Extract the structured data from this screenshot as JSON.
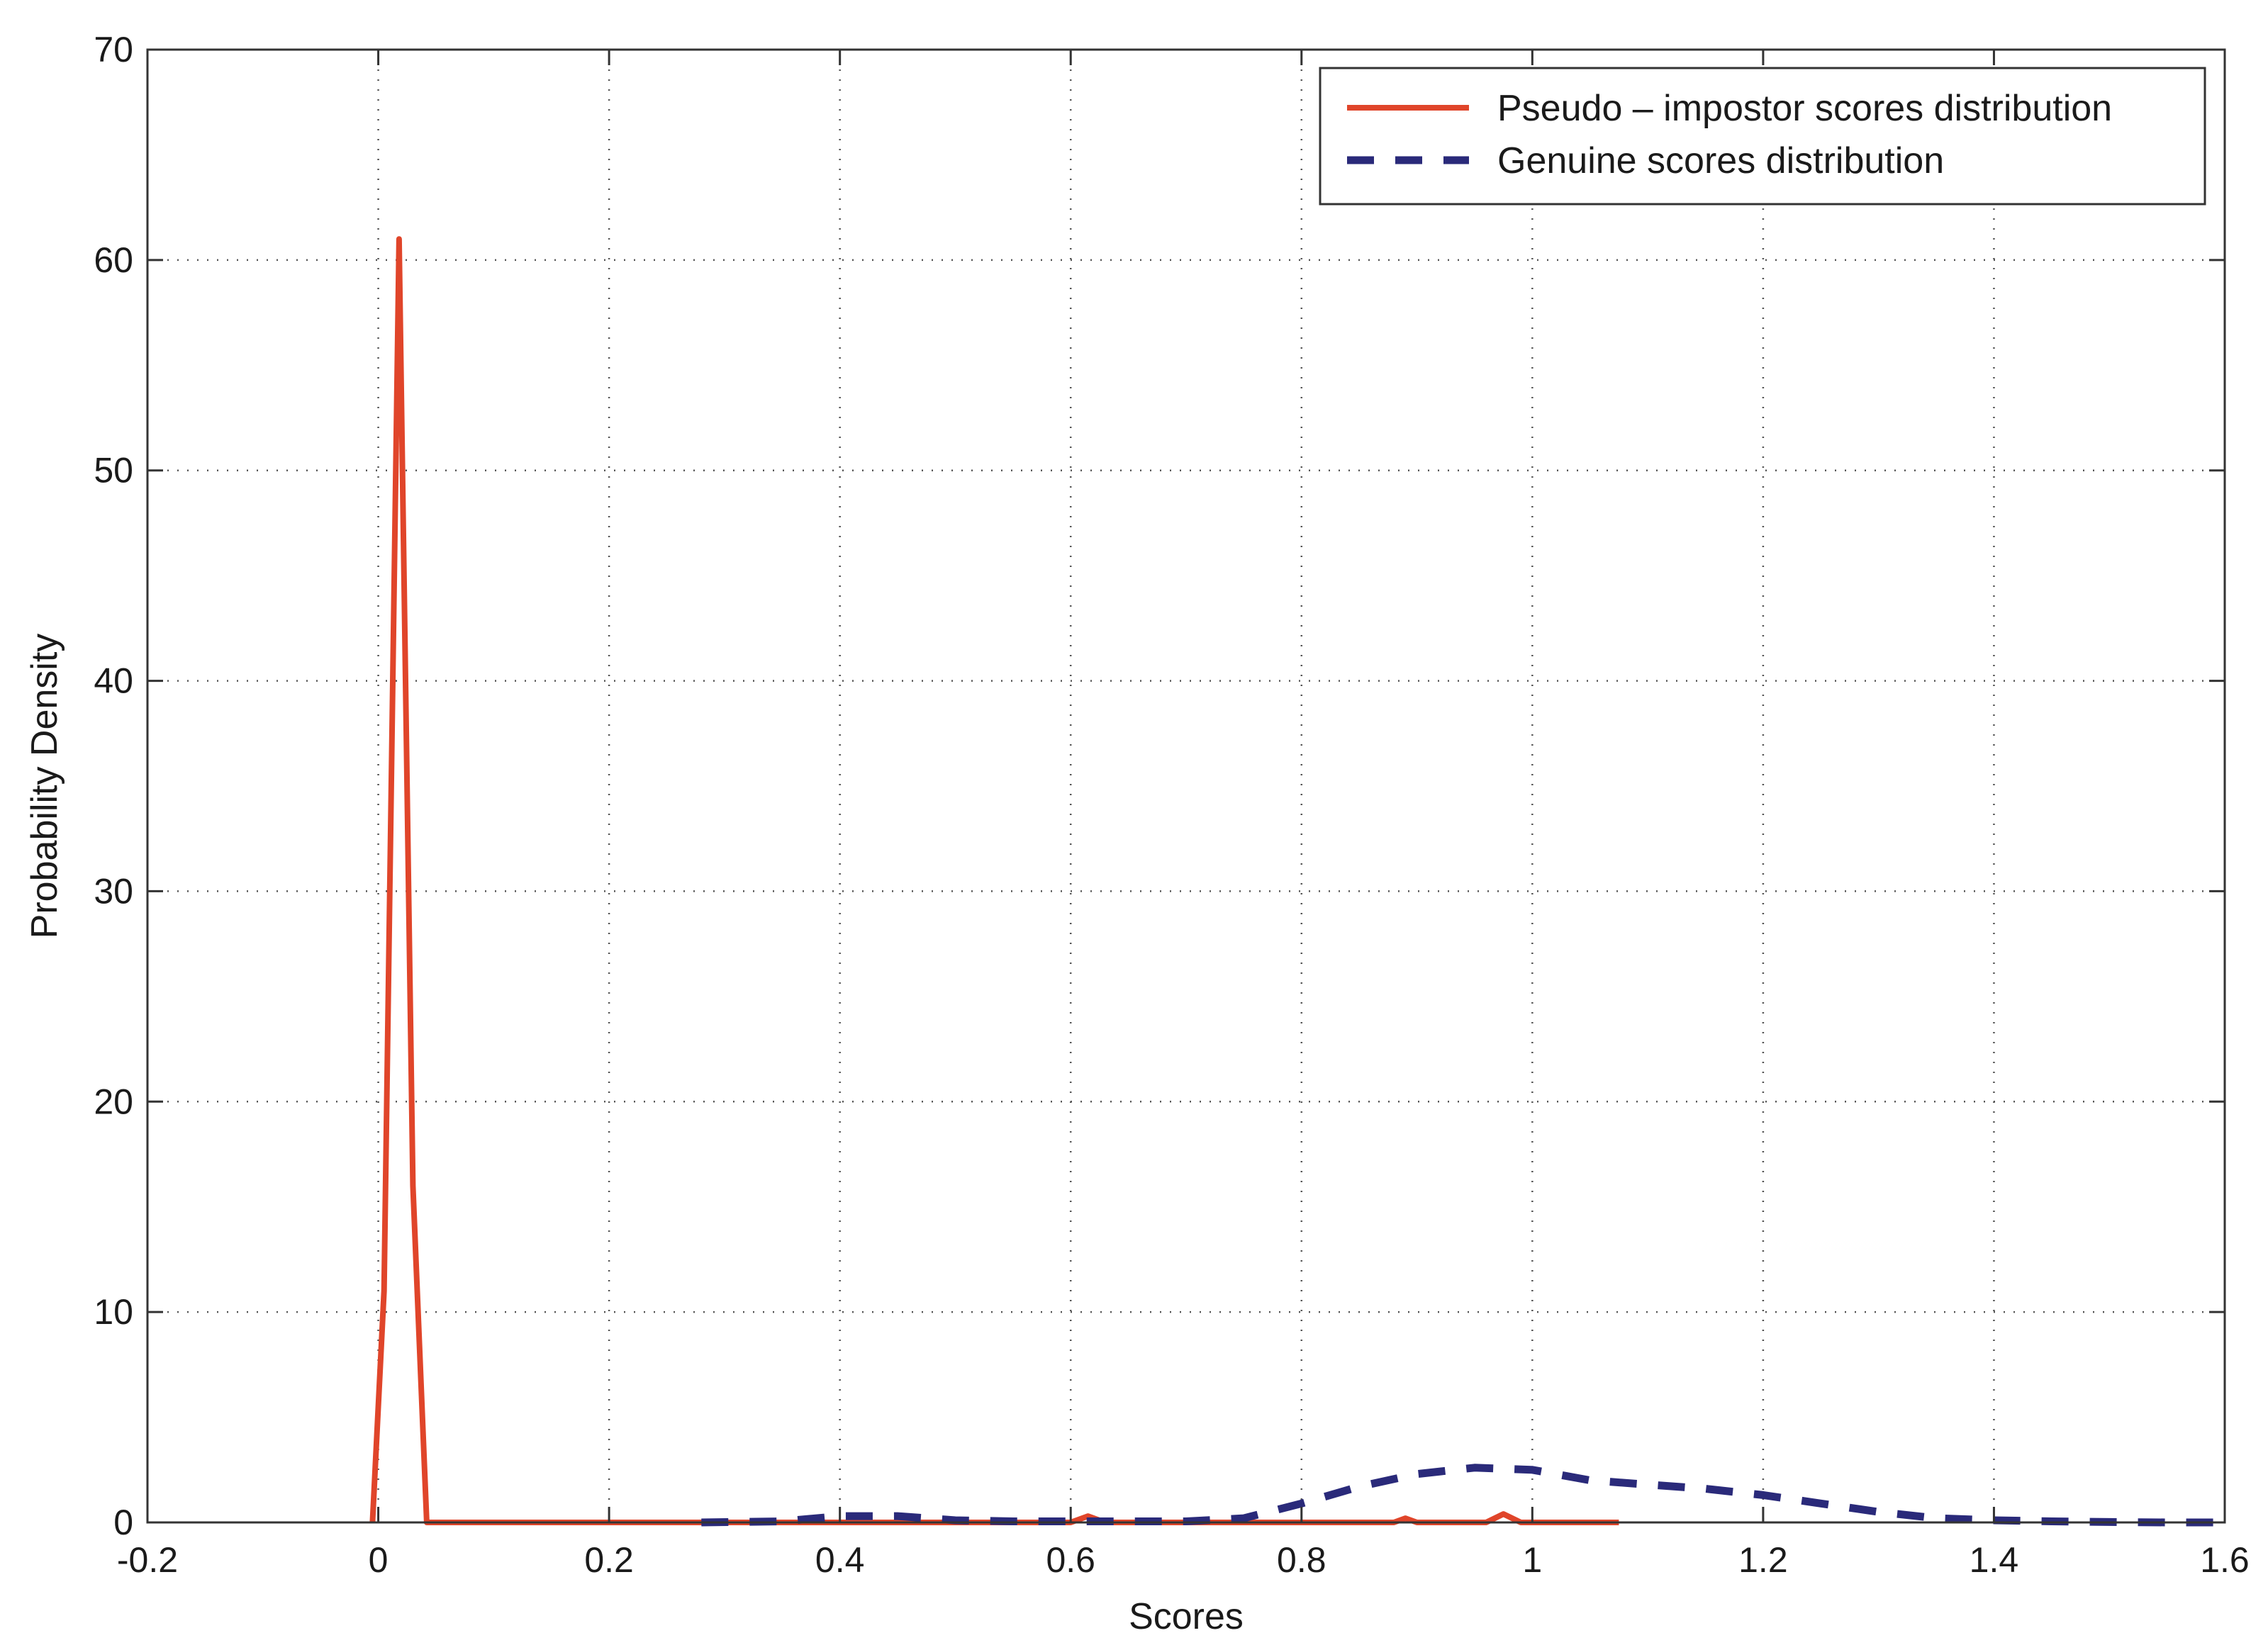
{
  "chart_data": {
    "type": "line",
    "title": "",
    "xlabel": "Scores",
    "ylabel": "Probability Density",
    "xlim": [
      -0.2,
      1.6
    ],
    "ylim": [
      0,
      70
    ],
    "xticks": [
      "-0.2",
      "0",
      "0.2",
      "0.4",
      "0.6",
      "0.8",
      "1",
      "1.2",
      "1.4",
      "1.6"
    ],
    "yticks": [
      "0",
      "10",
      "20",
      "30",
      "40",
      "50",
      "60",
      "70"
    ],
    "grid": true,
    "legend_position": "top-right",
    "series": [
      {
        "name": "Pseudo – impostor scores distribution",
        "color": "#e0452a",
        "style": "solid",
        "x": [
          -0.005,
          0.005,
          0.018,
          0.03,
          0.042,
          0.05,
          0.1,
          0.2,
          0.3,
          0.4,
          0.5,
          0.6,
          0.615,
          0.63,
          0.7,
          0.8,
          0.88,
          0.89,
          0.9,
          0.96,
          0.975,
          0.99,
          1.0,
          1.075
        ],
        "y": [
          0,
          11,
          61,
          16,
          0,
          0,
          0,
          0,
          0,
          0,
          0,
          0,
          0.3,
          0,
          0,
          0,
          0,
          0.2,
          0,
          0,
          0.4,
          0,
          0,
          0
        ]
      },
      {
        "name": "Genuine scores distribution",
        "color": "#2a2a7a",
        "style": "dashed",
        "x": [
          0.28,
          0.35,
          0.4,
          0.45,
          0.5,
          0.55,
          0.6,
          0.65,
          0.7,
          0.75,
          0.8,
          0.85,
          0.9,
          0.95,
          1.0,
          1.05,
          1.1,
          1.15,
          1.2,
          1.25,
          1.3,
          1.35,
          1.4,
          1.45,
          1.5,
          1.55,
          1.6
        ],
        "y": [
          0,
          0.05,
          0.3,
          0.3,
          0.1,
          0.05,
          0.05,
          0.05,
          0.05,
          0.2,
          0.9,
          1.7,
          2.3,
          2.6,
          2.5,
          2.0,
          1.8,
          1.6,
          1.3,
          0.9,
          0.5,
          0.2,
          0.1,
          0.05,
          0.02,
          0,
          0
        ]
      }
    ]
  }
}
